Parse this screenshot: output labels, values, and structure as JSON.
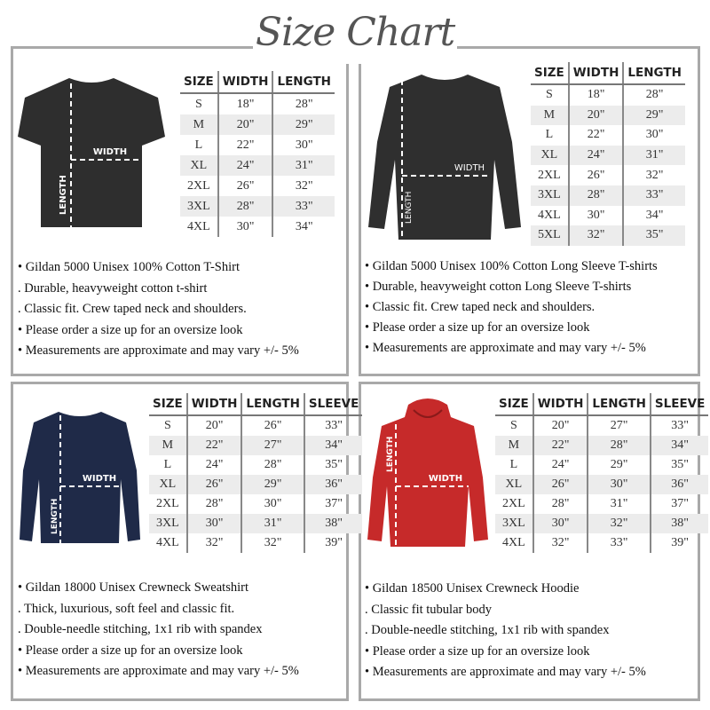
{
  "title": "Size Chart",
  "colors": {
    "border": "#a9a9a9",
    "tshirt": "#2e2e2e",
    "longsleeve": "#2f2f2f",
    "sweatshirt": "#1f2a48",
    "hoodie": "#c62a2a"
  },
  "products": [
    {
      "id": "tshirt",
      "image_labels": {
        "width": "WIDTH",
        "length": "LENGTH"
      },
      "columns": [
        "SIZE",
        "WIDTH",
        "LENGTH"
      ],
      "rows": [
        [
          "S",
          "18\"",
          "28\""
        ],
        [
          "M",
          "20\"",
          "29\""
        ],
        [
          "L",
          "22\"",
          "30\""
        ],
        [
          "XL",
          "24\"",
          "31\""
        ],
        [
          "2XL",
          "26\"",
          "32\""
        ],
        [
          "3XL",
          "28\"",
          "33\""
        ],
        [
          "4XL",
          "30\"",
          "34\""
        ]
      ],
      "bullets": [
        "• Gildan 5000 Unisex 100% Cotton T-Shirt",
        ". Durable, heavyweight cotton t-shirt",
        ". Classic fit. Crew taped neck and shoulders.",
        "• Please order a size up for an oversize look",
        "• Measurements are approximate and may vary +/- 5%"
      ]
    },
    {
      "id": "longsleeve",
      "image_labels": {
        "width": "WIDTH",
        "length": "LENGTH"
      },
      "columns": [
        "SIZE",
        "WIDTH",
        "LENGTH"
      ],
      "rows": [
        [
          "S",
          "18\"",
          "28\""
        ],
        [
          "M",
          "20\"",
          "29\""
        ],
        [
          "L",
          "22\"",
          "30\""
        ],
        [
          "XL",
          "24\"",
          "31\""
        ],
        [
          "2XL",
          "26\"",
          "32\""
        ],
        [
          "3XL",
          "28\"",
          "33\""
        ],
        [
          "4XL",
          "30\"",
          "34\""
        ],
        [
          "5XL",
          "32\"",
          "35\""
        ]
      ],
      "bullets": [
        "• Gildan 5000 Unisex 100% Cotton Long Sleeve T-shirts",
        "• Durable, heavyweight cotton Long Sleeve T-shirts",
        "• Classic fit. Crew taped neck and shoulders.",
        "• Please order a size up for an oversize look",
        "• Measurements are approximate and may vary +/- 5%"
      ]
    },
    {
      "id": "sweatshirt",
      "image_labels": {
        "width": "WIDTH",
        "length": "LENGTH"
      },
      "columns": [
        "SIZE",
        "WIDTH",
        "LENGTH",
        "SLEEVE"
      ],
      "rows": [
        [
          "S",
          "20\"",
          "26\"",
          "33\""
        ],
        [
          "M",
          "22\"",
          "27\"",
          "34\""
        ],
        [
          "L",
          "24\"",
          "28\"",
          "35\""
        ],
        [
          "XL",
          "26\"",
          "29\"",
          "36\""
        ],
        [
          "2XL",
          "28\"",
          "30\"",
          "37\""
        ],
        [
          "3XL",
          "30\"",
          "31\"",
          "38\""
        ],
        [
          "4XL",
          "32\"",
          "32\"",
          "39\""
        ]
      ],
      "bullets": [
        "• Gildan 18000 Unisex Crewneck Sweatshirt",
        ". Thick, luxurious, soft feel and classic fit.",
        ". Double-needle stitching, 1x1 rib with spandex",
        "• Please order a size up for an oversize look",
        "• Measurements are approximate and may vary +/- 5%"
      ]
    },
    {
      "id": "hoodie",
      "image_labels": {
        "width": "WIDTH",
        "length": "LENGTH"
      },
      "columns": [
        "SIZE",
        "WIDTH",
        "LENGTH",
        "SLEEVE"
      ],
      "rows": [
        [
          "S",
          "20\"",
          "27\"",
          "33\""
        ],
        [
          "M",
          "22\"",
          "28\"",
          "34\""
        ],
        [
          "L",
          "24\"",
          "29\"",
          "35\""
        ],
        [
          "XL",
          "26\"",
          "30\"",
          "36\""
        ],
        [
          "2XL",
          "28\"",
          "31\"",
          "37\""
        ],
        [
          "3XL",
          "30\"",
          "32\"",
          "38\""
        ],
        [
          "4XL",
          "32\"",
          "33\"",
          "39\""
        ]
      ],
      "bullets": [
        "• Gildan 18500 Unisex Crewneck Hoodie",
        ". Classic fit tubular body",
        ". Double-needle stitching, 1x1 rib with spandex",
        "• Please order a size up for an oversize look",
        "• Measurements are approximate and may vary +/- 5%"
      ]
    }
  ]
}
